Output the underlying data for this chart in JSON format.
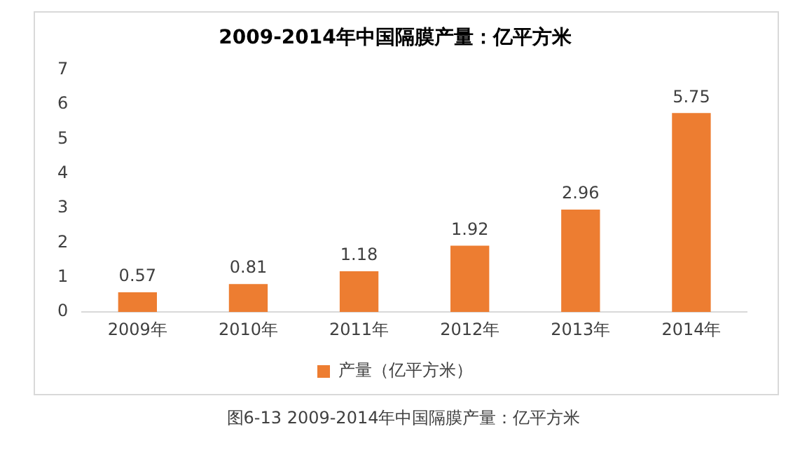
{
  "chart_data": {
    "type": "bar",
    "title": "2009-2014年中国隔膜产量：亿平方米",
    "categories": [
      "2009年",
      "2010年",
      "2011年",
      "2012年",
      "2013年",
      "2014年"
    ],
    "series": [
      {
        "name": "产量（亿平方米）",
        "color": "#ed7d31",
        "values": [
          0.57,
          0.81,
          1.18,
          1.92,
          2.96,
          5.75
        ]
      }
    ],
    "ylim": [
      0,
      7
    ],
    "yticks": [
      0,
      1,
      2,
      3,
      4,
      5,
      6,
      7
    ],
    "grid": false,
    "legend": "bottom",
    "data_labels": true,
    "annotations": [
      "图6-13 2009-2014年中国隔膜产量：亿平方米"
    ]
  }
}
